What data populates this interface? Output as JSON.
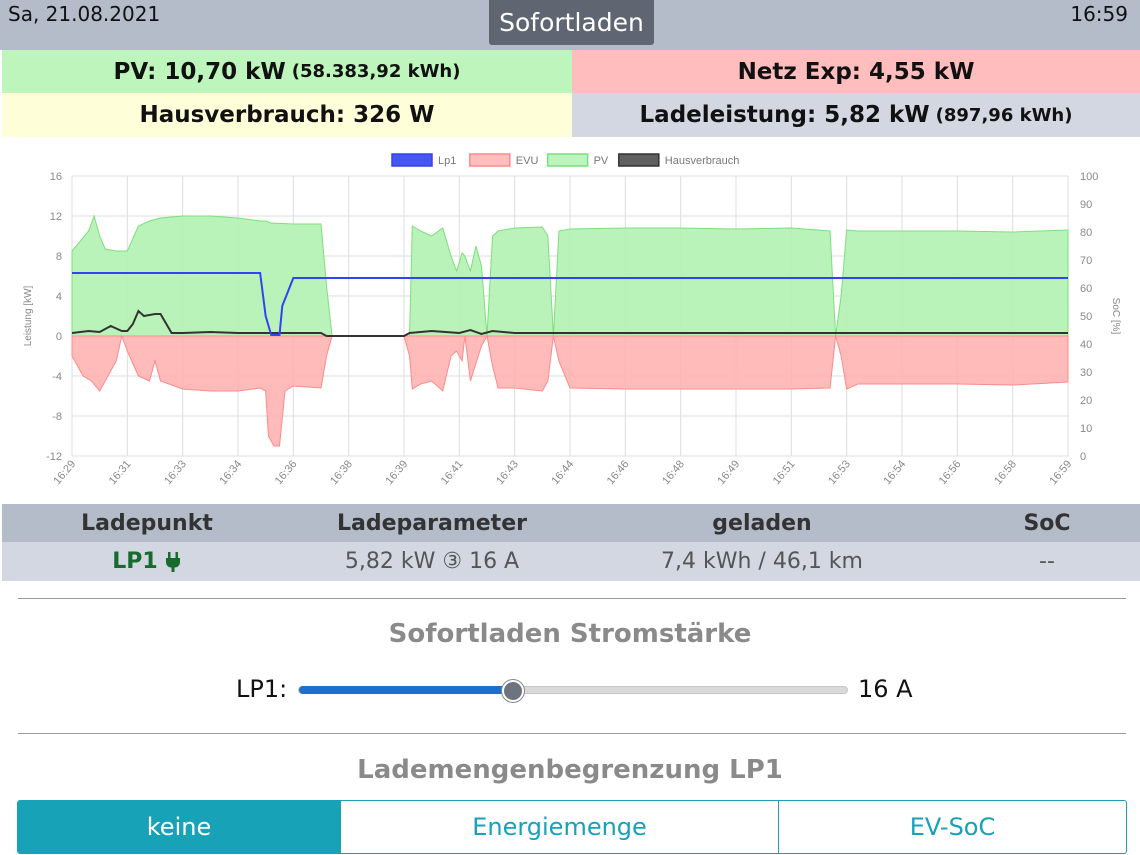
{
  "header": {
    "date": "Sa, 21.08.2021",
    "time": "16:59",
    "mode": "Sofortladen"
  },
  "tiles": {
    "pv_label": "PV: 10,70 kW",
    "pv_total": "(58.383,92 kWh)",
    "grid_label": "Netz Exp: 4,55 kW",
    "house_label": "Hausverbrauch: 326 W",
    "charge_label": "Ladeleistung: 5,82 kW",
    "charge_total": "(897,96 kWh)"
  },
  "colors": {
    "pv_bg": "#bdf5bd",
    "grid_bg": "#ffbdbd",
    "house_bg": "#fefed9",
    "charge_bg": "#d2d7e2",
    "accent": "#17a2b8",
    "slider": "#1b6fd1"
  },
  "chart_data": {
    "type": "area",
    "legend_position": "top",
    "grid": true,
    "ylabel_left": "Leistung [kW]",
    "ylabel_right": "SoC [%]",
    "ylim": [
      -12,
      16
    ],
    "ylim_right": [
      0,
      100
    ],
    "yticks_left": [
      "16",
      "12",
      "8",
      "4",
      "0",
      "-4",
      "-8",
      "-12"
    ],
    "yticks_right": [
      "100",
      "90",
      "80",
      "70",
      "60",
      "50",
      "40",
      "30",
      "20",
      "10",
      "0"
    ],
    "x_ticks": [
      "16:29",
      "16:31",
      "16:33",
      "16:34",
      "16:36",
      "16:38",
      "16:39",
      "16:41",
      "16:43",
      "16:44",
      "16:46",
      "16:48",
      "16:49",
      "16:51",
      "16:53",
      "16:54",
      "16:56",
      "16:58",
      "16:59"
    ],
    "series": [
      {
        "name": "Lp1",
        "color": "#3344ee",
        "fill": "#3344ee",
        "x": [
          0,
          3.4,
          3.5,
          3.6,
          3.75,
          3.8,
          4.0,
          18
        ],
        "y": [
          6.3,
          6.3,
          2,
          0.1,
          0.1,
          3,
          5.8,
          5.8
        ]
      },
      {
        "name": "EVU",
        "color": "#ff8a8a",
        "fill": "#ffb3b3",
        "x": [
          0,
          0.2,
          0.35,
          0.5,
          0.8,
          0.9,
          1.0,
          1.2,
          1.4,
          1.5,
          1.6,
          2.0,
          2.5,
          3.0,
          3.4,
          3.5,
          3.55,
          3.65,
          3.75,
          3.85,
          4.0,
          4.5,
          4.6,
          4.7,
          4.8,
          5.0,
          6.0,
          6.1,
          6.15,
          6.3,
          6.5,
          6.7,
          6.85,
          6.95,
          7.05,
          7.1,
          7.2,
          7.4,
          7.5,
          7.6,
          7.7,
          8.0,
          8.5,
          8.6,
          8.7,
          8.8,
          9.0,
          10.0,
          11.0,
          12.0,
          13.0,
          13.7,
          13.8,
          13.9,
          14.0,
          14.2,
          15.0,
          16.0,
          17.0,
          18.0
        ],
        "y": [
          -2,
          -4,
          -4.5,
          -5.5,
          -2.5,
          0,
          -1.5,
          -4,
          -4.5,
          -2.5,
          -4.5,
          -5.3,
          -5.5,
          -5.5,
          -5.2,
          -5.5,
          -10,
          -11,
          -11,
          -5.5,
          -5.0,
          -5.2,
          -2,
          0,
          0,
          0,
          0,
          -2,
          -5.3,
          -4.8,
          -4.5,
          -5.5,
          -2,
          -1.5,
          -2.5,
          0,
          -4.5,
          -1,
          0,
          -3,
          -5.2,
          -5.2,
          -5.5,
          -4.5,
          0,
          -2.5,
          -5.2,
          -5.3,
          -5.3,
          -5.3,
          -5.3,
          -5.2,
          0,
          -2,
          -5.3,
          -4.8,
          -4.8,
          -4.8,
          -4.9,
          -4.6
        ]
      },
      {
        "name": "PV",
        "color": "#7be07b",
        "fill": "#b3f2b3",
        "x": [
          0,
          0.3,
          0.4,
          0.5,
          0.6,
          0.8,
          1.0,
          1.2,
          1.4,
          1.6,
          2.0,
          2.5,
          3.0,
          3.4,
          3.5,
          3.6,
          4.0,
          4.5,
          4.6,
          4.7,
          5.0,
          6.0,
          6.1,
          6.15,
          6.3,
          6.5,
          6.7,
          6.85,
          6.95,
          7.05,
          7.1,
          7.2,
          7.3,
          7.4,
          7.5,
          7.6,
          7.7,
          8.0,
          8.5,
          8.6,
          8.7,
          8.8,
          9.0,
          10.0,
          11.0,
          12.0,
          13.0,
          13.7,
          13.8,
          13.9,
          14.0,
          14.2,
          15.0,
          16.0,
          17.0,
          18.0
        ],
        "y": [
          8.5,
          10.5,
          12,
          10,
          8.7,
          8.5,
          8.5,
          11,
          11.5,
          11.8,
          12,
          12,
          11.8,
          11.5,
          11.5,
          11.3,
          11.2,
          11.2,
          5,
          0,
          0,
          0,
          0,
          11,
          10.5,
          10,
          10.8,
          8,
          6.5,
          8.3,
          8,
          6.5,
          9,
          7,
          0,
          10,
          10.5,
          10.8,
          10.9,
          10,
          0,
          10.5,
          10.7,
          10.8,
          10.8,
          10.7,
          10.8,
          10.5,
          0,
          4,
          10.6,
          10.5,
          10.5,
          10.5,
          10.4,
          10.6
        ]
      },
      {
        "name": "Hausverbrauch",
        "color": "#333333",
        "fill": "#444444",
        "x": [
          0,
          0.3,
          0.5,
          0.7,
          0.9,
          1.0,
          1.1,
          1.2,
          1.3,
          1.5,
          1.6,
          1.8,
          2.0,
          2.5,
          3.0,
          3.5,
          4.0,
          4.5,
          4.6,
          5.0,
          6.0,
          6.1,
          6.5,
          7.0,
          7.2,
          7.4,
          7.6,
          8.0,
          9.0,
          10.0,
          11.0,
          12.0,
          13.0,
          14.0,
          15.0,
          16.0,
          17.0,
          18.0
        ],
        "y": [
          0.3,
          0.5,
          0.4,
          1,
          0.5,
          0.5,
          1.2,
          2.5,
          2,
          2.2,
          2.2,
          0.3,
          0.3,
          0.4,
          0.3,
          0.3,
          0.3,
          0.3,
          0,
          0,
          0,
          0.3,
          0.5,
          0.3,
          0.6,
          0.2,
          0.5,
          0.3,
          0.3,
          0.3,
          0.3,
          0.3,
          0.3,
          0.3,
          0.3,
          0.3,
          0.3,
          0.3
        ]
      }
    ]
  },
  "table": {
    "headers": [
      "Ladepunkt",
      "Ladeparameter",
      "geladen",
      "SoC"
    ],
    "row": {
      "lp": "LP1",
      "params": "5,82 kW ③ 16 A",
      "charged": "7,4 kWh / 46,1 km",
      "soc": "--"
    }
  },
  "sofortladen": {
    "title": "Sofortladen Stromstärke",
    "slider_label": "LP1:",
    "slider_value": "16 A",
    "slider_fraction": 0.39
  },
  "limit": {
    "title": "Lademengenbegrenzung LP1",
    "options": [
      "keine",
      "Energiemenge",
      "EV-SoC"
    ],
    "selected": 0
  }
}
